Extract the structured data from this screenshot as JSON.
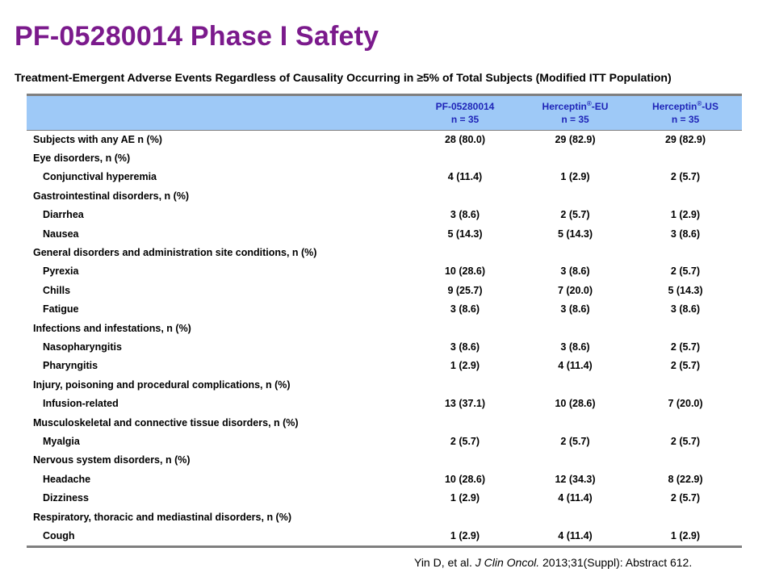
{
  "title": "PF-05280014 Phase I Safety",
  "subtitle": "Treatment-Emergent Adverse Events Regardless of Causality Occurring in ≥5% of Total Subjects (Modified ITT Population)",
  "columns": [
    {
      "name": "PF-05280014",
      "n": "n = 35"
    },
    {
      "name": "Herceptin",
      "sup": "®",
      "suffix": "-EU",
      "n": "n = 35"
    },
    {
      "name": "Herceptin",
      "sup": "®",
      "suffix": "-US",
      "n": "n = 35"
    }
  ],
  "rows": [
    {
      "label": "Subjects with any AE n (%)",
      "indent": false,
      "values": [
        "28 (80.0)",
        "29 (82.9)",
        "29 (82.9)"
      ]
    },
    {
      "label": "Eye disorders, n (%)",
      "indent": false,
      "values": [
        "",
        "",
        ""
      ]
    },
    {
      "label": "Conjunctival hyperemia",
      "indent": true,
      "values": [
        "4 (11.4)",
        "1 (2.9)",
        "2 (5.7)"
      ]
    },
    {
      "label": "Gastrointestinal disorders, n (%)",
      "indent": false,
      "values": [
        "",
        "",
        ""
      ]
    },
    {
      "label": "Diarrhea",
      "indent": true,
      "values": [
        "3 (8.6)",
        "2 (5.7)",
        "1 (2.9)"
      ]
    },
    {
      "label": "Nausea",
      "indent": true,
      "values": [
        "5 (14.3)",
        "5 (14.3)",
        "3 (8.6)"
      ]
    },
    {
      "label": "General disorders and administration site conditions, n (%)",
      "indent": false,
      "values": [
        "",
        "",
        ""
      ]
    },
    {
      "label": "Pyrexia",
      "indent": true,
      "values": [
        "10 (28.6)",
        "3 (8.6)",
        "2 (5.7)"
      ]
    },
    {
      "label": "Chills",
      "indent": true,
      "values": [
        "9 (25.7)",
        "7 (20.0)",
        "5 (14.3)"
      ]
    },
    {
      "label": "Fatigue",
      "indent": true,
      "values": [
        "3 (8.6)",
        "3 (8.6)",
        "3 (8.6)"
      ]
    },
    {
      "label": "Infections and infestations, n (%)",
      "indent": false,
      "values": [
        "",
        "",
        ""
      ]
    },
    {
      "label": "Nasopharyngitis",
      "indent": true,
      "values": [
        "3 (8.6)",
        "3 (8.6)",
        "2 (5.7)"
      ]
    },
    {
      "label": "Pharyngitis",
      "indent": true,
      "values": [
        "1 (2.9)",
        "4 (11.4)",
        "2 (5.7)"
      ]
    },
    {
      "label": "Injury, poisoning and procedural complications, n (%)",
      "indent": false,
      "values": [
        "",
        "",
        ""
      ]
    },
    {
      "label": "Infusion-related",
      "indent": true,
      "values": [
        "13 (37.1)",
        "10 (28.6)",
        "7 (20.0)"
      ]
    },
    {
      "label": "Musculoskeletal and connective tissue disorders, n (%)",
      "indent": false,
      "values": [
        "",
        "",
        ""
      ]
    },
    {
      "label": "Myalgia",
      "indent": true,
      "values": [
        "2 (5.7)",
        "2 (5.7)",
        "2 (5.7)"
      ]
    },
    {
      "label": "Nervous system disorders, n (%)",
      "indent": false,
      "values": [
        "",
        "",
        ""
      ]
    },
    {
      "label": "Headache",
      "indent": true,
      "values": [
        "10 (28.6)",
        "12 (34.3)",
        "8 (22.9)"
      ]
    },
    {
      "label": "Dizziness",
      "indent": true,
      "values": [
        "1 (2.9)",
        "4 (11.4)",
        "2 (5.7)"
      ]
    },
    {
      "label": "Respiratory, thoracic and mediastinal disorders, n (%)",
      "indent": false,
      "values": [
        "",
        "",
        ""
      ]
    },
    {
      "label": "Cough",
      "indent": true,
      "values": [
        "1 (2.9)",
        "4 (11.4)",
        "1 (2.9)"
      ]
    }
  ],
  "citation": {
    "pre": "Yin D, et al. ",
    "journal": "J Clin Oncol.",
    "post": "  2013;31(Suppl): Abstract 612."
  },
  "colors": {
    "title": "#7b1a8c",
    "header_bg": "#9ec9f7",
    "header_text": "#1f25b8",
    "rule": "#7f7f7f"
  }
}
